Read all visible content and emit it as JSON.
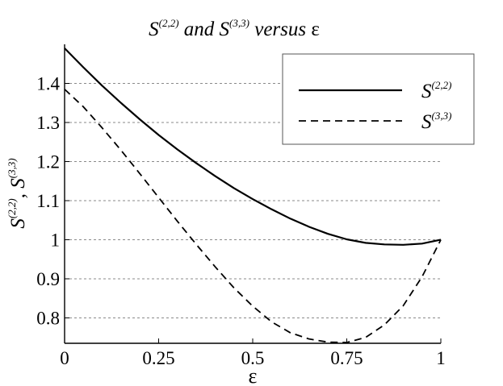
{
  "chart_data": {
    "type": "line",
    "title": {
      "prefix": "S",
      "prefix_sup": "(2,2)",
      "middle": " and S",
      "middle_sup": "(3,3)",
      "suffix": " versus ",
      "symbol": "ε"
    },
    "xlabel": "ε",
    "ylabel": {
      "part1": "S",
      "part1_sup": "(2,2)",
      "sep": ", S",
      "part2_sup": "(3,3)"
    },
    "xlim": [
      0,
      1
    ],
    "ylim": [
      0.735,
      1.5
    ],
    "xticks": [
      {
        "value": 0,
        "label": "0"
      },
      {
        "value": 0.25,
        "label": "0.25"
      },
      {
        "value": 0.5,
        "label": "0.5"
      },
      {
        "value": 0.75,
        "label": "0.75"
      },
      {
        "value": 1,
        "label": "1"
      }
    ],
    "yticks": [
      {
        "value": 0.8,
        "label": "0.8"
      },
      {
        "value": 0.9,
        "label": "0.9"
      },
      {
        "value": 1.0,
        "label": "1"
      },
      {
        "value": 1.1,
        "label": "1.1"
      },
      {
        "value": 1.2,
        "label": "1.2"
      },
      {
        "value": 1.3,
        "label": "1.3"
      },
      {
        "value": 1.4,
        "label": "1.4"
      }
    ],
    "grid": "horizontal dashed",
    "legend_position": "top-right",
    "series": [
      {
        "name": "S",
        "name_sup": "(2,2)",
        "style": "solid",
        "x": [
          0,
          0.05,
          0.1,
          0.15,
          0.2,
          0.25,
          0.3,
          0.35,
          0.4,
          0.45,
          0.5,
          0.55,
          0.6,
          0.65,
          0.7,
          0.75,
          0.8,
          0.85,
          0.9,
          0.95,
          1.0
        ],
        "y": [
          1.49,
          1.441,
          1.394,
          1.35,
          1.308,
          1.268,
          1.231,
          1.196,
          1.163,
          1.132,
          1.104,
          1.078,
          1.054,
          1.033,
          1.015,
          1.001,
          0.992,
          0.988,
          0.987,
          0.99,
          1.0
        ]
      },
      {
        "name": "S",
        "name_sup": "(3,3)",
        "style": "dashed",
        "x": [
          0,
          0.05,
          0.1,
          0.15,
          0.2,
          0.25,
          0.3,
          0.35,
          0.4,
          0.45,
          0.5,
          0.55,
          0.6,
          0.65,
          0.7,
          0.75,
          0.8,
          0.85,
          0.9,
          0.95,
          1.0
        ],
        "y": [
          1.385,
          1.34,
          1.286,
          1.229,
          1.169,
          1.108,
          1.047,
          0.988,
          0.931,
          0.877,
          0.83,
          0.79,
          0.762,
          0.746,
          0.738,
          0.737,
          0.75,
          0.782,
          0.831,
          0.905,
          1.0
        ]
      }
    ]
  }
}
